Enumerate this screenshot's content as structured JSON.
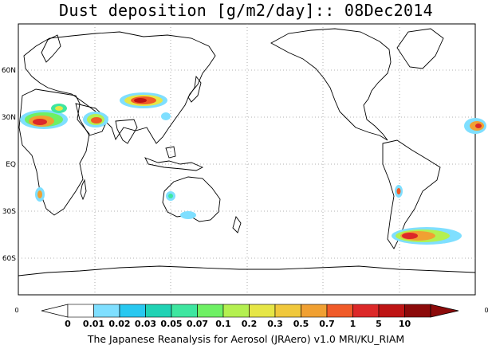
{
  "title": "Dust deposition [g/m2/day]:: 08Dec2014",
  "lat_labels": [
    "60N",
    "30N",
    "EQ",
    "30S",
    "60S"
  ],
  "colorbar": {
    "levels": [
      "0",
      "0.01",
      "0.02",
      "0.03",
      "0.05",
      "0.07",
      "0.1",
      "0.2",
      "0.3",
      "0.5",
      "0.7",
      "1",
      "5",
      "10"
    ],
    "colors": [
      "#ffffff",
      "#7fdfff",
      "#28c8f0",
      "#20d2b4",
      "#3ee6a0",
      "#6ef064",
      "#b4f050",
      "#e6e646",
      "#f0c83c",
      "#f0a032",
      "#f05a28",
      "#dc2828",
      "#be1414",
      "#8c0a0a"
    ],
    "left_label": "0",
    "right_label": "0"
  },
  "credit": "The Japanese Reanalysis for Aerosol (JRAero) v1.0 MRI/KU_RIAM"
}
